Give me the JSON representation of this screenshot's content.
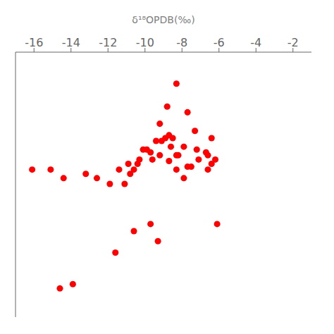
{
  "chart_data": {
    "type": "scatter",
    "x_label": "δ¹⁸OPDB(‰)",
    "x": [
      -8.3,
      -8.8,
      -9.2,
      -8.5,
      -7.7,
      -7.3,
      -6.4,
      -10.1,
      -9.6,
      -9.1,
      -8.7,
      -8.3,
      -7.9,
      -7.2,
      -6.7,
      -10.6,
      -10.3,
      -9.9,
      -9.4,
      -8.9,
      -8.6,
      -8.2,
      -7.7,
      -7.1,
      -6.6,
      -6.2,
      -11.1,
      -10.8,
      -10.4,
      -9.7,
      -9.2,
      -8.7,
      -8.3,
      -7.9,
      -7.5,
      -6.6,
      -6.4,
      -13.2,
      -12.6,
      -11.9,
      -11.4,
      -10.9,
      -15.1,
      -14.4,
      -16.1,
      -9.7,
      -10.6,
      -11.6,
      -9.3,
      -6.1,
      -14.6,
      -13.9
    ],
    "values": [
      0.88,
      0.72,
      0.6,
      0.5,
      0.68,
      0.55,
      0.5,
      0.42,
      0.35,
      0.48,
      0.52,
      0.38,
      0.44,
      0.42,
      0.4,
      0.28,
      0.35,
      0.42,
      0.48,
      0.5,
      0.44,
      0.38,
      0.3,
      0.35,
      0.38,
      0.35,
      0.18,
      0.25,
      0.32,
      0.4,
      0.38,
      0.34,
      0.28,
      0.22,
      0.3,
      0.28,
      0.32,
      0.25,
      0.22,
      0.18,
      0.28,
      0.32,
      0.28,
      0.22,
      0.28,
      -0.1,
      -0.15,
      -0.3,
      -0.22,
      -0.1,
      -0.55,
      -0.52
    ],
    "color": "#FF0000",
    "xlim": [
      -17.0,
      -1.0
    ],
    "xticks": [
      -16,
      -14,
      -12,
      -10,
      -8,
      -6,
      -4,
      -2
    ],
    "ylim": [
      -0.75,
      1.1
    ],
    "tick_labels": "x",
    "grid": false
  }
}
